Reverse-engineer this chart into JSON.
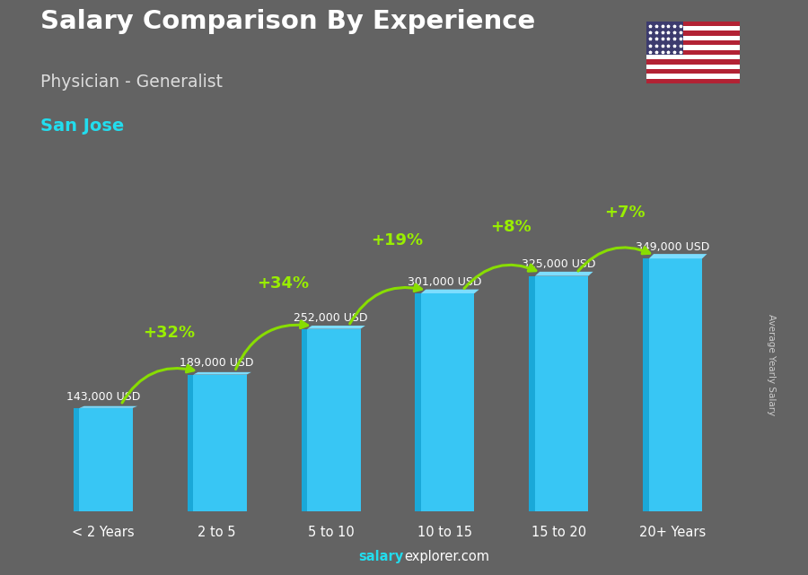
{
  "title_line1": "Salary Comparison By Experience",
  "title_line2": "Physician - Generalist",
  "title_line3": "San Jose",
  "categories": [
    "< 2 Years",
    "2 to 5",
    "5 to 10",
    "10 to 15",
    "15 to 20",
    "20+ Years"
  ],
  "values": [
    143000,
    189000,
    252000,
    301000,
    325000,
    349000
  ],
  "labels": [
    "143,000 USD",
    "189,000 USD",
    "252,000 USD",
    "301,000 USD",
    "325,000 USD",
    "349,000 USD"
  ],
  "pct_changes": [
    "+32%",
    "+34%",
    "+19%",
    "+8%",
    "+7%"
  ],
  "bar_color": "#38C6F4",
  "bar_left_color": "#1AA8D8",
  "bar_top_color": "#7DDDFF",
  "background_color": "#636363",
  "title1_color": "#ffffff",
  "title2_color": "#dddddd",
  "title3_color": "#22DDEE",
  "label_color": "#ffffff",
  "pct_color": "#99EE00",
  "arrow_color": "#88DD00",
  "ylabel": "Average Yearly Salary",
  "footer_bold": "salary",
  "footer_regular": "explorer.com",
  "ylim_max": 420000,
  "fig_width": 9.0,
  "fig_height": 6.41
}
